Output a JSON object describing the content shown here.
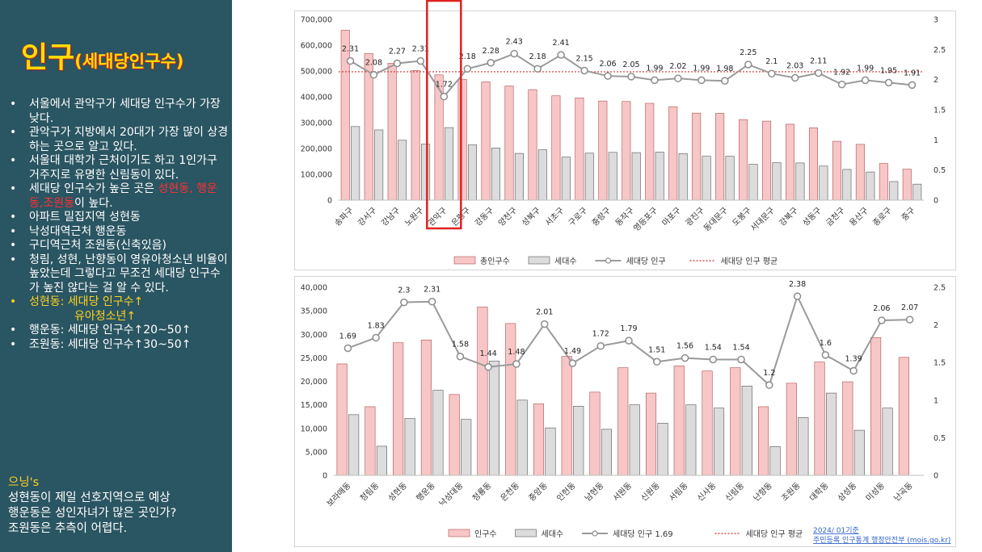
{
  "sidebar": {
    "title_main": "인구",
    "title_sub": "(세대당인구수)",
    "bullets": [
      {
        "text": "서울에서 관악구가 세대당 인구수가  가장 낮다.",
        "style": "white"
      },
      {
        "text": "관악구가 지방에서 20대가 가장 많이 상경하는 곳으로 알고 있다.",
        "style": "white"
      },
      {
        "text": "서울대 대학가 근처이기도 하고 1인가구 거주지로 유명한 신림동이 있다.",
        "style": "white"
      },
      {
        "text_pre": "세대당 인구수가 높은 곳은 ",
        "text_red": "성현동, 행운동,조원동",
        "text_post": "이 높다.",
        "style": "mixed"
      },
      {
        "text": "아파트 밀집지역 성현동",
        "style": "white"
      },
      {
        "text": "낙성대역근처 행운동",
        "style": "white"
      },
      {
        "text": "구디역근처 조원동(신축있음)",
        "style": "white"
      },
      {
        "text": "청림, 성현, 난향동이 영유아청소년 비율이 높았는데 그렇다고 무조건 세대당 인구수가 높진 않다는 걸 알 수 있다.",
        "style": "white"
      },
      {
        "text": "성현동: 세대당 인구수↑",
        "text2": "유아청소년↑",
        "style": "yellow"
      },
      {
        "text": "행운동: 세대당 인구수↑20~50↑",
        "style": "white"
      },
      {
        "text": "조원동: 세대당 인구수↑30~50↑",
        "style": "white"
      }
    ],
    "note_title": "으닝's",
    "note_lines": [
      "성현동이 제일 선호지역으로 예상",
      "행운동은 성인자녀가 많은 곳인가?",
      "조원동은 추측이 어렵다."
    ]
  },
  "colors": {
    "sidebar_bg": "#2a5562",
    "title_yellow": "#ffdd00",
    "bar_pop": "#f7c6c6",
    "bar_pop_border": "#b05050",
    "bar_hh": "#dcdcdc",
    "bar_hh_border": "#555555",
    "line": "#9a9a9a",
    "avg_line": "#d03030",
    "highlight_box": "#e02020"
  },
  "chart_data": [
    {
      "type": "bar",
      "categories": [
        "송파구",
        "강서구",
        "강남구",
        "노원구",
        "관악구",
        "은평구",
        "강동구",
        "양천구",
        "성북구",
        "서초구",
        "구로구",
        "중랑구",
        "동작구",
        "영등포구",
        "마포구",
        "광진구",
        "동대문구",
        "도봉구",
        "서대문구",
        "강북구",
        "성동구",
        "금천구",
        "용산구",
        "종로구",
        "중구"
      ],
      "series": [
        {
          "name": "총인구수",
          "kind": "bar",
          "axis": "left",
          "values": [
            658000,
            568000,
            530000,
            502000,
            485000,
            468000,
            458000,
            442000,
            428000,
            404000,
            396000,
            384000,
            382000,
            375000,
            362000,
            337000,
            336000,
            312000,
            306000,
            294000,
            280000,
            228000,
            216000,
            142000,
            120000
          ]
        },
        {
          "name": "세대수",
          "kind": "bar",
          "axis": "left",
          "values": [
            285000,
            272000,
            232000,
            217000,
            281000,
            214000,
            202000,
            181000,
            195000,
            167000,
            182000,
            185000,
            184000,
            186000,
            180000,
            170000,
            170000,
            139000,
            145000,
            144000,
            132000,
            119000,
            109000,
            72000,
            62000
          ]
        },
        {
          "name": "세대당 인구",
          "kind": "line",
          "axis": "right",
          "values": [
            2.31,
            2.08,
            2.27,
            2.31,
            1.72,
            2.18,
            2.28,
            2.43,
            2.18,
            2.41,
            2.15,
            2.06,
            2.05,
            1.99,
            2.02,
            1.99,
            1.98,
            2.25,
            2.1,
            2.03,
            2.11,
            1.92,
            1.99,
            1.95,
            1.91
          ]
        },
        {
          "name": "세대당 인구 평균",
          "kind": "ref",
          "axis": "right",
          "value": 2.13
        }
      ],
      "data_labels": [
        "2.31",
        "2.08",
        "2.27",
        "2.31",
        "1.72",
        "2.18",
        "2.28",
        "2.43",
        "2.18",
        "2.41",
        "2.15",
        "2.06",
        "2.05",
        "1.99",
        "2.02",
        "1.99",
        "1.98",
        "2.25",
        "2.1",
        "2.03",
        "2.11",
        "1.92",
        "1.99",
        "1.95",
        "1.91"
      ],
      "y_ticks": [
        "0",
        "100,000",
        "200,000",
        "300,000",
        "400,000",
        "500,000",
        "600,000",
        "700,000"
      ],
      "y2_ticks": [
        "0",
        "0.5",
        "1",
        "1.5",
        "2",
        "2.5",
        "3"
      ],
      "ylim": [
        0,
        700000
      ],
      "y2lim": [
        0,
        3
      ],
      "highlight_category": "관악구",
      "legend_position": "bottom",
      "legend": [
        "총인구수",
        "세대수",
        "세대당 인구",
        "세대당 인구 평균"
      ]
    },
    {
      "type": "bar",
      "categories": [
        "보라매동",
        "청림동",
        "성현동",
        "행운동",
        "낙성대동",
        "청룡동",
        "은천동",
        "중앙동",
        "인헌동",
        "남현동",
        "서원동",
        "신원동",
        "서림동",
        "신사동",
        "신림동",
        "난향동",
        "조원동",
        "대학동",
        "삼성동",
        "미성동",
        "난곡동"
      ],
      "series": [
        {
          "name": "인구수",
          "kind": "bar",
          "axis": "left",
          "values": [
            23700,
            14600,
            28200,
            28800,
            17200,
            35800,
            32300,
            15200,
            25300,
            17700,
            22900,
            17500,
            23300,
            22200,
            22900,
            14600,
            19600,
            24100,
            19900,
            29300,
            25100
          ]
        },
        {
          "name": "세대수",
          "kind": "bar",
          "axis": "left",
          "values": [
            12900,
            6200,
            12100,
            18100,
            11900,
            24300,
            16000,
            10100,
            14700,
            9800,
            15000,
            11100,
            15000,
            14300,
            19000,
            6100,
            12300,
            17500,
            9600,
            14300,
            null
          ]
        },
        {
          "name": "세대당 인구 1.69",
          "kind": "line",
          "axis": "right",
          "values": [
            1.69,
            1.83,
            2.3,
            2.31,
            1.58,
            1.44,
            1.48,
            2.01,
            1.49,
            1.72,
            1.79,
            1.51,
            1.56,
            1.54,
            1.54,
            1.2,
            2.38,
            1.6,
            1.39,
            2.06,
            2.07
          ]
        },
        {
          "name": "세대당 인구 평균",
          "kind": "ref",
          "axis": "right",
          "value": null
        }
      ],
      "data_labels": [
        "1.69",
        "1.83",
        "2.3",
        "2.31",
        "1.58",
        "1.44",
        "1.48",
        "2.01",
        "1.49",
        "1.72",
        "1.79",
        "1.51",
        "1.56",
        "1.54",
        "1.54",
        "1.2",
        "2.38",
        "1.6",
        "1.39",
        "2.06",
        "2.07"
      ],
      "y_ticks": [
        "0",
        "5,000",
        "10,000",
        "15,000",
        "20,000",
        "25,000",
        "30,000",
        "35,000",
        "40,000"
      ],
      "y2_ticks": [
        "0",
        "0.5",
        "1",
        "1.5",
        "2",
        "2.5"
      ],
      "ylim": [
        0,
        40000
      ],
      "y2lim": [
        0,
        2.5
      ],
      "legend_position": "bottom",
      "legend": [
        "인구수",
        "세대수",
        "세대당 인구 1.69",
        "세대당 인구 평균"
      ],
      "source_line1": "2024/ 01기준",
      "source_line2": "주민등록 인구통계 행정안전부 (mois.go.kr)"
    }
  ]
}
